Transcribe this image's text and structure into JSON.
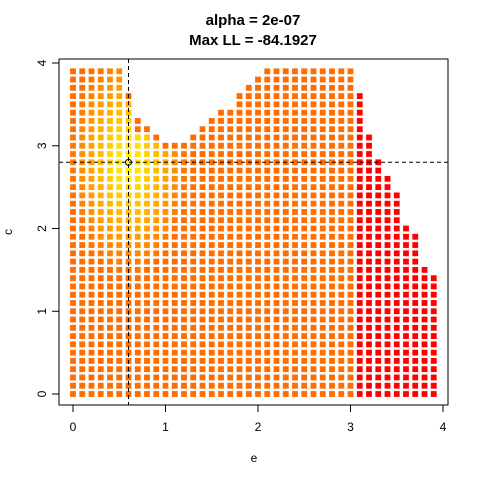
{
  "chart_data": {
    "type": "heatmap",
    "title_line1": "alpha =  2e-07",
    "title_line2": "Max LL =  -84.1927",
    "xlabel": "e",
    "ylabel": "c",
    "xlim": [
      0,
      4
    ],
    "ylim": [
      0,
      4
    ],
    "xticks": [
      "0",
      "1",
      "2",
      "3",
      "4"
    ],
    "yticks": [
      "0",
      "1",
      "2",
      "3",
      "4"
    ],
    "grid_step": 0.1,
    "grid_x_range": [
      0,
      3.9
    ],
    "boundary": [
      {
        "e": 0.0,
        "c_max": 3.9
      },
      {
        "e": 0.1,
        "c_max": 3.9
      },
      {
        "e": 0.2,
        "c_max": 3.9
      },
      {
        "e": 0.3,
        "c_max": 3.9
      },
      {
        "e": 0.4,
        "c_max": 3.9
      },
      {
        "e": 0.5,
        "c_max": 3.9
      },
      {
        "e": 0.6,
        "c_max": 3.6
      },
      {
        "e": 0.7,
        "c_max": 3.3
      },
      {
        "e": 0.8,
        "c_max": 3.2
      },
      {
        "e": 0.9,
        "c_max": 3.1
      },
      {
        "e": 1.0,
        "c_max": 3.0
      },
      {
        "e": 1.1,
        "c_max": 3.0
      },
      {
        "e": 1.2,
        "c_max": 3.0
      },
      {
        "e": 1.3,
        "c_max": 3.1
      },
      {
        "e": 1.4,
        "c_max": 3.2
      },
      {
        "e": 1.5,
        "c_max": 3.3
      },
      {
        "e": 1.6,
        "c_max": 3.4
      },
      {
        "e": 1.7,
        "c_max": 3.4
      },
      {
        "e": 1.8,
        "c_max": 3.6
      },
      {
        "e": 1.9,
        "c_max": 3.7
      },
      {
        "e": 2.0,
        "c_max": 3.8
      },
      {
        "e": 2.1,
        "c_max": 3.9
      },
      {
        "e": 2.2,
        "c_max": 3.9
      },
      {
        "e": 2.3,
        "c_max": 3.9
      },
      {
        "e": 2.4,
        "c_max": 3.9
      },
      {
        "e": 2.5,
        "c_max": 3.9
      },
      {
        "e": 2.6,
        "c_max": 3.9
      },
      {
        "e": 2.7,
        "c_max": 3.9
      },
      {
        "e": 2.8,
        "c_max": 3.9
      },
      {
        "e": 2.9,
        "c_max": 3.9
      },
      {
        "e": 3.0,
        "c_max": 3.9
      },
      {
        "e": 3.1,
        "c_max": 3.6
      },
      {
        "e": 3.2,
        "c_max": 3.1
      },
      {
        "e": 3.3,
        "c_max": 2.8
      },
      {
        "e": 3.4,
        "c_max": 2.6
      },
      {
        "e": 3.5,
        "c_max": 2.4
      },
      {
        "e": 3.6,
        "c_max": 2.0
      },
      {
        "e": 3.7,
        "c_max": 1.9
      },
      {
        "e": 3.8,
        "c_max": 1.5
      },
      {
        "e": 3.9,
        "c_max": 1.4
      }
    ],
    "max_point": {
      "e": 0.6,
      "c": 2.8
    },
    "colormap": [
      "#ff0000",
      "#ff8000",
      "#ffff00"
    ],
    "reference_lines": {
      "vertical_e": 0.6,
      "horizontal_c": 2.8,
      "style": "dashed"
    },
    "grid": false,
    "legend": "none"
  }
}
